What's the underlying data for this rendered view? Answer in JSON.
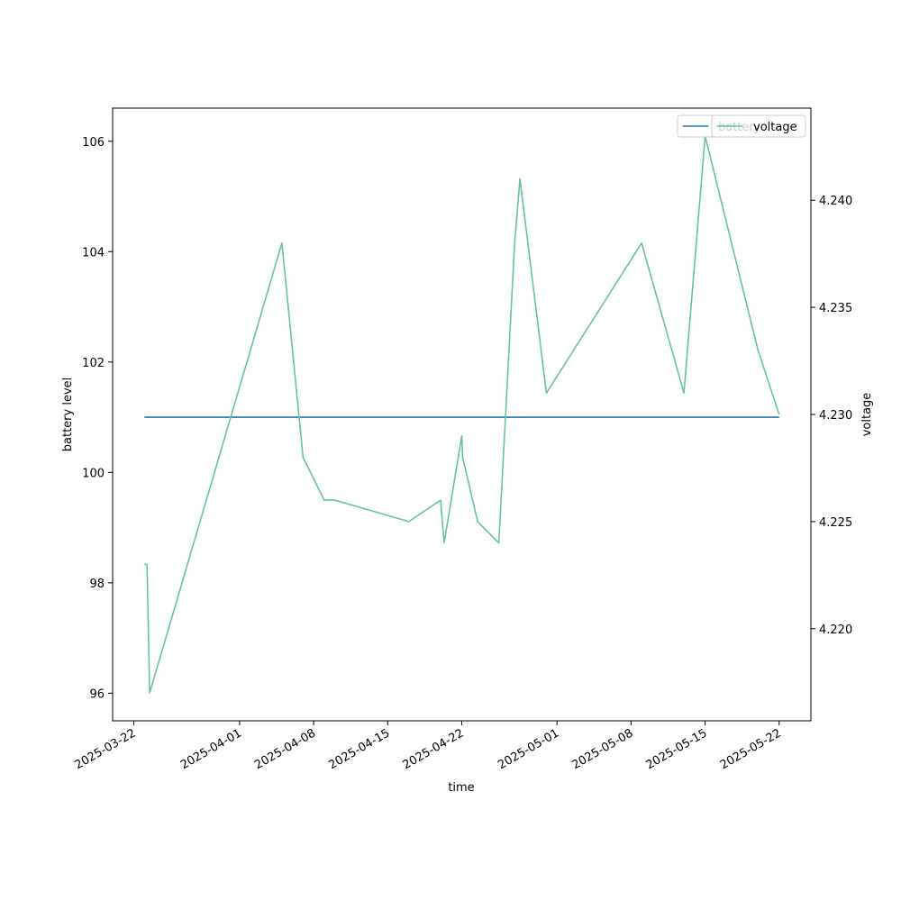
{
  "chart_data": {
    "type": "line",
    "xlabel": "time",
    "ylabel_left": "battery level",
    "ylabel_right": "voltage",
    "x_ticks": [
      "2025-03-22",
      "2025-04-01",
      "2025-04-08",
      "2025-04-15",
      "2025-04-22",
      "2025-05-01",
      "2025-05-08",
      "2025-05-15",
      "2025-05-22"
    ],
    "x_range": [
      "2025-03-20",
      "2025-05-25"
    ],
    "y_left_ticks": [
      96,
      98,
      100,
      102,
      104,
      106
    ],
    "y_left_range": [
      95.5,
      106.6
    ],
    "y_right_ticks": [
      4.22,
      4.225,
      4.23,
      4.235,
      4.24
    ],
    "y_right_range": [
      4.2157,
      4.2443
    ],
    "grid": false,
    "legend": {
      "placement": "top-right"
    },
    "series": [
      {
        "name": "battery",
        "axis": "left",
        "color": "#1f77b4",
        "points": [
          {
            "x": "2025-03-23",
            "y": 101
          },
          {
            "x": "2025-05-22",
            "y": 101
          }
        ]
      },
      {
        "name": "voltage",
        "axis": "right",
        "color": "#66c2a5",
        "points": [
          {
            "x": "2025-03-23",
            "y": 4.223
          },
          {
            "x": "2025-03-23 06:00",
            "y": 4.223
          },
          {
            "x": "2025-03-23 12:00",
            "y": 4.217
          },
          {
            "x": "2025-04-05",
            "y": 4.238
          },
          {
            "x": "2025-04-07",
            "y": 4.228
          },
          {
            "x": "2025-04-09",
            "y": 4.226
          },
          {
            "x": "2025-04-10",
            "y": 4.226
          },
          {
            "x": "2025-04-17",
            "y": 4.225
          },
          {
            "x": "2025-04-20",
            "y": 4.226
          },
          {
            "x": "2025-04-20 08:00",
            "y": 4.224
          },
          {
            "x": "2025-04-22",
            "y": 4.229
          },
          {
            "x": "2025-04-22 02:00",
            "y": 4.228
          },
          {
            "x": "2025-04-23 12:00",
            "y": 4.225
          },
          {
            "x": "2025-04-25 12:00",
            "y": 4.224
          },
          {
            "x": "2025-04-27",
            "y": 4.238
          },
          {
            "x": "2025-04-27 12:00",
            "y": 4.241
          },
          {
            "x": "2025-04-29 12:00",
            "y": 4.233
          },
          {
            "x": "2025-04-30",
            "y": 4.231
          },
          {
            "x": "2025-05-09",
            "y": 4.238
          },
          {
            "x": "2025-05-13",
            "y": 4.231
          },
          {
            "x": "2025-05-15",
            "y": 4.243
          },
          {
            "x": "2025-05-18",
            "y": 4.237
          },
          {
            "x": "2025-05-20",
            "y": 4.233
          },
          {
            "x": "2025-05-22",
            "y": 4.23
          }
        ]
      }
    ]
  }
}
